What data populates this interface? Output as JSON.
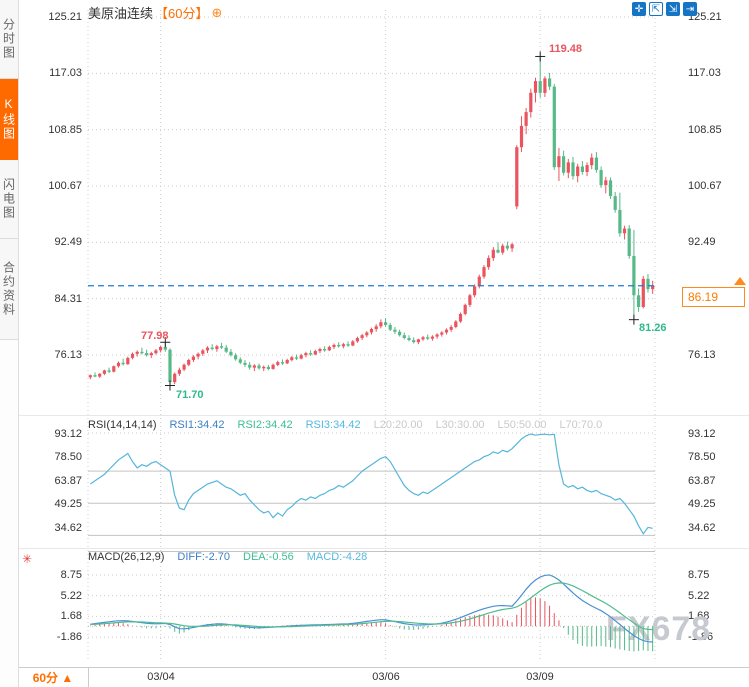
{
  "header": {
    "title": "美原油连续",
    "period_tag": "【60分】",
    "plus_icon": "⊕"
  },
  "toolbar": {
    "icons": [
      {
        "name": "pan-icon",
        "glyph": "✛",
        "filled": true
      },
      {
        "name": "zoom-box-icon",
        "glyph": "⇱",
        "filled": false
      },
      {
        "name": "axis-scale-icon",
        "glyph": "⇲",
        "filled": true
      },
      {
        "name": "collapse-right-icon",
        "glyph": "⇥",
        "filled": true
      }
    ]
  },
  "sidebar": {
    "tabs": [
      {
        "label": "分时图",
        "active": false
      },
      {
        "label": "K线图",
        "active": true
      },
      {
        "label": "闪电图",
        "active": false
      },
      {
        "label": "合约资料",
        "active": false
      }
    ]
  },
  "price_marker": {
    "value": "86.19",
    "numeric": 86.19
  },
  "rsi_legend": {
    "name": "RSI(14,14,14)",
    "rsi1": "RSI1:34.42",
    "rsi2": "RSI2:34.42",
    "rsi3": "RSI3:34.42",
    "l20": "L20:20.00",
    "l30": "L30:30.00",
    "l50": "L50:50.00",
    "l70": "L70:70.0"
  },
  "macd_legend": {
    "name": "MACD(26,12,9)",
    "diff": "DIFF:-2.70",
    "dea": "DEA:-0.56",
    "macd": "MACD:-4.28"
  },
  "macd_settings_icon": "✳",
  "footer": {
    "period": "60分",
    "arrow": "▲"
  },
  "watermark": "FX678",
  "x_axis": {
    "labels": [
      "03/04",
      "03/06",
      "03/09"
    ]
  },
  "colors": {
    "up": "#e9545f",
    "down": "#56b987",
    "rsi_line": "#56b6dc",
    "diff_line": "#4a8fd4",
    "dea_line": "#4fbd8f",
    "price_line": "#1c7cd5",
    "grid": "#cccccc",
    "grid_solid": "#c3c3c3",
    "marker_cross": "#222222",
    "marker_high": "#e9545f",
    "marker_low": "#2fb98c",
    "accent_orange": "#ff8a1e"
  },
  "chart_data": [
    {
      "type": "candlestick",
      "title": "美原油连续【60分】",
      "y_ticks": [
        "125.21",
        "117.03",
        "108.85",
        "100.67",
        "92.49",
        "84.31",
        "76.13"
      ],
      "y_tick_values": [
        125.21,
        117.03,
        108.85,
        100.67,
        92.49,
        84.31,
        76.13
      ],
      "current_price": 86.19,
      "date_marks": [
        {
          "label": "03/04",
          "index": 15
        },
        {
          "label": "03/06",
          "index": 63
        },
        {
          "label": "03/09",
          "index": 96
        }
      ],
      "markers": [
        {
          "index": 16,
          "kind": "high",
          "value": 77.98,
          "label": "77.98"
        },
        {
          "index": 17,
          "kind": "low",
          "value": 71.7,
          "label": "71.70"
        },
        {
          "index": 96,
          "kind": "high",
          "value": 119.48,
          "label": "119.48"
        },
        {
          "index": 116,
          "kind": "low",
          "value": 81.26,
          "label": "81.26"
        }
      ],
      "candles_ohlc": [
        [
          72.9,
          73.3,
          72.6,
          73.2
        ],
        [
          73.2,
          73.6,
          72.9,
          73.0
        ],
        [
          73.0,
          73.5,
          72.8,
          73.4
        ],
        [
          73.4,
          74.0,
          73.2,
          73.9
        ],
        [
          73.9,
          74.3,
          73.5,
          73.7
        ],
        [
          73.7,
          74.6,
          73.6,
          74.5
        ],
        [
          74.5,
          75.2,
          74.3,
          75.0
        ],
        [
          75.0,
          75.6,
          74.6,
          74.8
        ],
        [
          74.8,
          75.9,
          74.7,
          75.7
        ],
        [
          75.7,
          76.5,
          75.5,
          76.3
        ],
        [
          76.3,
          76.8,
          75.9,
          76.6
        ],
        [
          76.6,
          77.2,
          76.2,
          76.4
        ],
        [
          76.4,
          76.9,
          75.9,
          76.1
        ],
        [
          76.1,
          76.6,
          75.7,
          76.4
        ],
        [
          76.4,
          77.0,
          76.2,
          76.8
        ],
        [
          76.8,
          77.5,
          76.5,
          77.3
        ],
        [
          77.3,
          77.98,
          76.6,
          76.9
        ],
        [
          76.9,
          77.1,
          71.7,
          72.2
        ],
        [
          72.2,
          73.6,
          71.9,
          73.4
        ],
        [
          73.4,
          74.3,
          73.1,
          74.0
        ],
        [
          74.0,
          74.9,
          73.8,
          74.7
        ],
        [
          74.7,
          75.6,
          74.5,
          75.4
        ],
        [
          75.4,
          76.1,
          75.1,
          75.9
        ],
        [
          75.9,
          76.5,
          75.5,
          76.3
        ],
        [
          76.3,
          77.0,
          76.0,
          76.8
        ],
        [
          76.8,
          77.4,
          76.4,
          77.2
        ],
        [
          77.2,
          77.7,
          76.8,
          77.0
        ],
        [
          77.0,
          77.6,
          76.6,
          77.4
        ],
        [
          77.4,
          77.9,
          77.0,
          77.2
        ],
        [
          77.2,
          77.6,
          76.4,
          76.6
        ],
        [
          76.6,
          77.0,
          75.9,
          76.1
        ],
        [
          76.1,
          76.4,
          75.3,
          75.5
        ],
        [
          75.5,
          75.8,
          74.8,
          75.0
        ],
        [
          75.0,
          75.4,
          74.4,
          74.7
        ],
        [
          74.7,
          75.1,
          74.0,
          74.3
        ],
        [
          74.3,
          74.8,
          73.8,
          74.6
        ],
        [
          74.6,
          74.9,
          74.0,
          74.2
        ],
        [
          74.2,
          74.6,
          73.8,
          74.4
        ],
        [
          74.4,
          74.7,
          73.9,
          74.1
        ],
        [
          74.1,
          74.9,
          74.0,
          74.7
        ],
        [
          74.7,
          75.3,
          74.5,
          75.1
        ],
        [
          75.1,
          75.5,
          74.7,
          74.9
        ],
        [
          74.9,
          75.6,
          74.8,
          75.4
        ],
        [
          75.4,
          76.0,
          75.2,
          75.8
        ],
        [
          75.8,
          76.2,
          75.4,
          75.6
        ],
        [
          75.6,
          76.3,
          75.5,
          76.1
        ],
        [
          76.1,
          76.6,
          75.8,
          76.4
        ],
        [
          76.4,
          76.8,
          76.0,
          76.2
        ],
        [
          76.2,
          76.9,
          76.1,
          76.7
        ],
        [
          76.7,
          77.2,
          76.4,
          77.0
        ],
        [
          77.0,
          77.4,
          76.6,
          76.8
        ],
        [
          76.8,
          77.5,
          76.7,
          77.3
        ],
        [
          77.3,
          77.8,
          77.0,
          77.6
        ],
        [
          77.6,
          78.0,
          77.2,
          77.4
        ],
        [
          77.4,
          77.9,
          77.1,
          77.7
        ],
        [
          77.7,
          78.1,
          77.3,
          77.5
        ],
        [
          77.5,
          78.3,
          77.4,
          78.1
        ],
        [
          78.1,
          78.8,
          77.9,
          78.6
        ],
        [
          78.6,
          79.2,
          78.3,
          79.0
        ],
        [
          79.0,
          79.6,
          78.7,
          79.4
        ],
        [
          79.4,
          80.1,
          79.1,
          79.9
        ],
        [
          79.9,
          80.6,
          79.5,
          80.3
        ],
        [
          80.3,
          81.3,
          80.0,
          80.9
        ],
        [
          80.9,
          81.5,
          80.2,
          80.5
        ],
        [
          80.5,
          80.8,
          79.6,
          79.8
        ],
        [
          79.8,
          80.2,
          79.2,
          79.5
        ],
        [
          79.5,
          79.8,
          78.8,
          79.0
        ],
        [
          79.0,
          79.4,
          78.4,
          78.6
        ],
        [
          78.6,
          79.0,
          78.1,
          78.3
        ],
        [
          78.3,
          78.7,
          77.8,
          78.0
        ],
        [
          78.0,
          78.5,
          77.7,
          78.4
        ],
        [
          78.4,
          78.9,
          78.2,
          78.7
        ],
        [
          78.7,
          79.1,
          78.3,
          78.5
        ],
        [
          78.5,
          79.0,
          78.2,
          78.8
        ],
        [
          78.8,
          79.3,
          78.5,
          79.1
        ],
        [
          79.1,
          79.6,
          78.8,
          79.4
        ],
        [
          79.4,
          80.0,
          79.1,
          79.8
        ],
        [
          79.8,
          80.5,
          79.5,
          80.2
        ],
        [
          80.2,
          81.2,
          80.0,
          81.0
        ],
        [
          81.0,
          82.3,
          80.8,
          82.1
        ],
        [
          82.1,
          83.6,
          81.9,
          83.4
        ],
        [
          83.4,
          85.0,
          83.1,
          84.8
        ],
        [
          84.8,
          86.4,
          84.5,
          86.1
        ],
        [
          86.1,
          87.8,
          85.8,
          87.5
        ],
        [
          87.5,
          89.2,
          87.2,
          88.9
        ],
        [
          88.9,
          90.6,
          88.5,
          90.2
        ],
        [
          90.2,
          91.8,
          89.8,
          91.4
        ],
        [
          91.4,
          92.5,
          90.9,
          91.0
        ],
        [
          91.0,
          92.3,
          90.7,
          92.0
        ],
        [
          92.0,
          92.6,
          91.3,
          91.6
        ],
        [
          91.6,
          92.4,
          91.1,
          92.2
        ],
        [
          97.7,
          106.6,
          97.3,
          106.3
        ],
        [
          106.3,
          110.8,
          105.6,
          109.4
        ],
        [
          109.4,
          112.0,
          108.2,
          111.4
        ],
        [
          111.4,
          114.8,
          110.6,
          114.2
        ],
        [
          114.2,
          116.4,
          112.8,
          115.9
        ],
        [
          115.9,
          119.48,
          113.5,
          114.2
        ],
        [
          114.2,
          116.6,
          113.6,
          116.3
        ],
        [
          116.3,
          117.1,
          114.6,
          115.1
        ],
        [
          115.1,
          115.5,
          103.0,
          103.4
        ],
        [
          103.4,
          106.2,
          101.4,
          105.0
        ],
        [
          105.0,
          105.8,
          102.2,
          102.6
        ],
        [
          102.6,
          104.6,
          101.8,
          104.1
        ],
        [
          104.1,
          104.9,
          101.6,
          102.1
        ],
        [
          102.1,
          103.9,
          101.2,
          103.5
        ],
        [
          103.5,
          104.3,
          102.3,
          102.7
        ],
        [
          102.7,
          104.1,
          102.1,
          103.7
        ],
        [
          103.7,
          105.4,
          103.1,
          104.8
        ],
        [
          104.8,
          105.6,
          102.6,
          103.0
        ],
        [
          103.0,
          103.5,
          100.4,
          100.8
        ],
        [
          100.8,
          102.0,
          99.6,
          101.5
        ],
        [
          101.5,
          101.9,
          98.8,
          99.2
        ],
        [
          99.2,
          99.8,
          96.8,
          97.2
        ],
        [
          97.2,
          99.7,
          93.3,
          93.8
        ],
        [
          93.8,
          94.9,
          92.9,
          94.5
        ],
        [
          94.5,
          95.0,
          90.1,
          90.5
        ],
        [
          90.5,
          94.3,
          81.26,
          84.8
        ],
        [
          84.8,
          85.8,
          82.4,
          83.1
        ],
        [
          83.1,
          87.6,
          82.9,
          87.2
        ],
        [
          87.2,
          87.9,
          85.2,
          85.7
        ],
        [
          85.7,
          86.9,
          85.0,
          86.19
        ]
      ]
    },
    {
      "type": "line",
      "name": "RSI",
      "y_ticks": [
        "93.12",
        "78.50",
        "63.87",
        "49.25",
        "34.62"
      ],
      "y_tick_values": [
        93.12,
        78.5,
        63.87,
        49.25,
        34.62
      ],
      "level_lines": [
        70,
        50,
        30,
        20
      ],
      "values": [
        62,
        64,
        66,
        68,
        71,
        74,
        77,
        79,
        81,
        76,
        72,
        74,
        73,
        75,
        76,
        74,
        72,
        70,
        55,
        47,
        46,
        52,
        56,
        58,
        60,
        62,
        63,
        64,
        62,
        60,
        59,
        57,
        55,
        56,
        52,
        49,
        46,
        44,
        45,
        41,
        44,
        42,
        46,
        48,
        51,
        53,
        52,
        54,
        53,
        55,
        56,
        58,
        59,
        61,
        60,
        62,
        64,
        67,
        70,
        72,
        74,
        76,
        78,
        79,
        76,
        71,
        66,
        61,
        58,
        56,
        55,
        57,
        56,
        58,
        60,
        62,
        64,
        66,
        68,
        70,
        72,
        74,
        76,
        77,
        79,
        80,
        82,
        81,
        83,
        82,
        84,
        87,
        90,
        92,
        93.12,
        92.4,
        92.8,
        93.0,
        92.6,
        92.9,
        74,
        62,
        60,
        61,
        59,
        60,
        58,
        57,
        58,
        56,
        55,
        54,
        52,
        53,
        50,
        46,
        42,
        36,
        31,
        35,
        34.42
      ]
    },
    {
      "type": "line+bar",
      "name": "MACD",
      "y_ticks": [
        "8.75",
        "5.22",
        "1.68",
        "-1.86"
      ],
      "y_tick_values": [
        8.75,
        5.22,
        1.68,
        -1.86
      ],
      "histogram_rule": "2*(diff-dea)",
      "diff": [
        0.35,
        0.45,
        0.55,
        0.65,
        0.75,
        0.85,
        0.92,
        0.95,
        0.9,
        0.8,
        0.7,
        0.6,
        0.5,
        0.45,
        0.42,
        0.45,
        0.48,
        0.3,
        -0.1,
        -0.42,
        -0.45,
        -0.35,
        -0.2,
        -0.05,
        0.1,
        0.22,
        0.32,
        0.4,
        0.42,
        0.35,
        0.25,
        0.12,
        0.0,
        -0.1,
        -0.18,
        -0.25,
        -0.28,
        -0.25,
        -0.2,
        -0.15,
        -0.1,
        -0.05,
        0.0,
        0.05,
        0.1,
        0.15,
        0.18,
        0.2,
        0.22,
        0.25,
        0.28,
        0.3,
        0.33,
        0.36,
        0.38,
        0.4,
        0.48,
        0.58,
        0.7,
        0.82,
        0.92,
        1.02,
        1.12,
        1.08,
        0.95,
        0.78,
        0.6,
        0.44,
        0.32,
        0.24,
        0.2,
        0.22,
        0.26,
        0.32,
        0.4,
        0.52,
        0.7,
        0.92,
        1.18,
        1.48,
        1.8,
        2.12,
        2.44,
        2.74,
        3.0,
        3.22,
        3.4,
        3.5,
        3.52,
        3.48,
        3.42,
        4.3,
        5.3,
        6.3,
        7.2,
        7.9,
        8.4,
        8.7,
        8.75,
        8.4,
        7.9,
        7.2,
        6.45,
        5.7,
        5.0,
        4.4,
        3.9,
        3.45,
        3.05,
        2.65,
        2.15,
        1.6,
        0.95,
        0.3,
        -0.35,
        -1.0,
        -1.6,
        -2.1,
        -2.45,
        -2.65,
        -2.7
      ],
      "dea": [
        0.3,
        0.33,
        0.37,
        0.43,
        0.49,
        0.56,
        0.63,
        0.69,
        0.73,
        0.75,
        0.74,
        0.72,
        0.68,
        0.63,
        0.59,
        0.56,
        0.54,
        0.5,
        0.38,
        0.22,
        0.09,
        0.0,
        -0.04,
        -0.04,
        -0.01,
        0.04,
        0.1,
        0.16,
        0.21,
        0.24,
        0.24,
        0.22,
        0.17,
        0.12,
        0.06,
        0.0,
        -0.06,
        -0.1,
        -0.12,
        -0.13,
        -0.12,
        -0.11,
        -0.09,
        -0.06,
        -0.03,
        0.01,
        0.04,
        0.07,
        0.1,
        0.13,
        0.16,
        0.19,
        0.22,
        0.25,
        0.27,
        0.3,
        0.33,
        0.38,
        0.44,
        0.52,
        0.6,
        0.68,
        0.77,
        0.83,
        0.86,
        0.84,
        0.79,
        0.72,
        0.64,
        0.56,
        0.49,
        0.44,
        0.4,
        0.38,
        0.38,
        0.41,
        0.47,
        0.56,
        0.68,
        0.84,
        1.03,
        1.25,
        1.49,
        1.74,
        1.99,
        2.24,
        2.47,
        2.68,
        2.85,
        2.98,
        3.07,
        3.32,
        3.72,
        4.24,
        4.83,
        5.44,
        6.03,
        6.56,
        7.0,
        7.28,
        7.4,
        7.36,
        7.18,
        6.88,
        6.5,
        6.08,
        5.64,
        5.2,
        4.77,
        4.35,
        3.9,
        3.4,
        2.85,
        2.28,
        1.7,
        1.12,
        0.55,
        0.02,
        -0.4,
        -0.54,
        -0.56
      ]
    }
  ]
}
